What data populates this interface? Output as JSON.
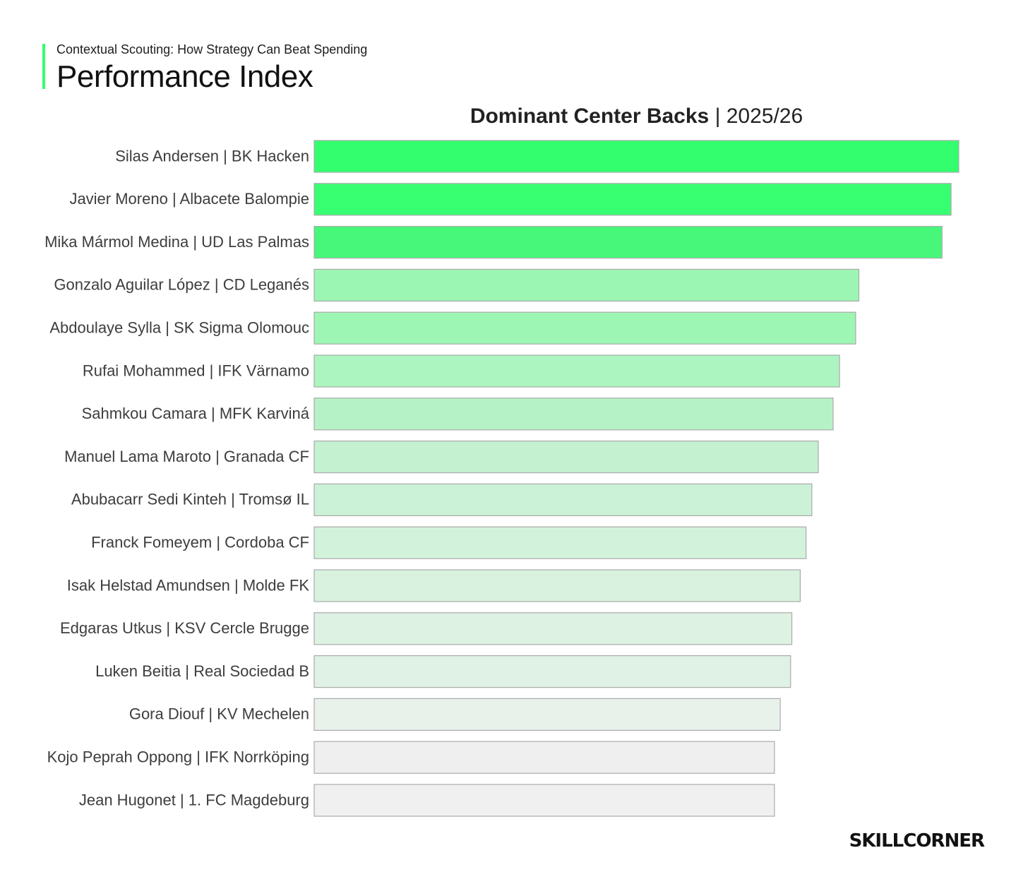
{
  "header": {
    "subtitle": "Contextual Scouting: How Strategy Can Beat Spending",
    "title": "Performance Index",
    "accent_color": "#33ff6e"
  },
  "chart_heading": {
    "bold": "Dominant Center Backs",
    "light": "| 2025/26"
  },
  "chart_data": {
    "type": "bar",
    "orientation": "horizontal",
    "categories": [
      "Silas Andersen | BK Hacken",
      "Javier Moreno | Albacete Balompie",
      "Mika Mármol Medina | UD Las Palmas",
      "Gonzalo Aguilar López | CD Leganés",
      "Abdoulaye Sylla | SK Sigma Olomouc",
      "Rufai Mohammed | IFK Värnamo",
      "Sahmkou Camara | MFK Karviná",
      "Manuel Lama Maroto | Granada CF",
      "Abubacarr Sedi Kinteh | Tromsø IL",
      "Franck Fomeyem | Cordoba CF",
      "Isak Helstad Amundsen | Molde FK",
      "Edgaras Utkus | KSV Cercle Brugge",
      "Luken Beitia | Real Sociedad B",
      "Gora Diouf | KV Mechelen",
      "Kojo Peprah  Oppong | IFK Norrköping",
      "Jean Hugonet | 1. FC Magdeburg"
    ],
    "values": [
      100,
      98.8,
      97.4,
      84.5,
      84.0,
      81.5,
      80.5,
      78.2,
      77.2,
      76.3,
      75.4,
      74.1,
      73.9,
      72.3,
      71.4,
      71.4
    ],
    "colors": [
      "#33ff6e",
      "#38fe72",
      "#47f779",
      "#9cf6b3",
      "#9ef6b4",
      "#acf4c0",
      "#b5f3c6",
      "#c4f1d0",
      "#cbf2d6",
      "#d3f2dc",
      "#d9f1df",
      "#def2e4",
      "#e0f1e5",
      "#e9f1eb",
      "#eeefee",
      "#f0f0f0"
    ],
    "bar_border_color": "#aaaaaa",
    "xlim": [
      0,
      100
    ],
    "title": "Dominant Center Backs | 2025/26",
    "xlabel": "",
    "ylabel": "",
    "grid": false,
    "axis_ticks_shown": false
  },
  "brand": {
    "logo_text": "SKILLCORNER"
  }
}
